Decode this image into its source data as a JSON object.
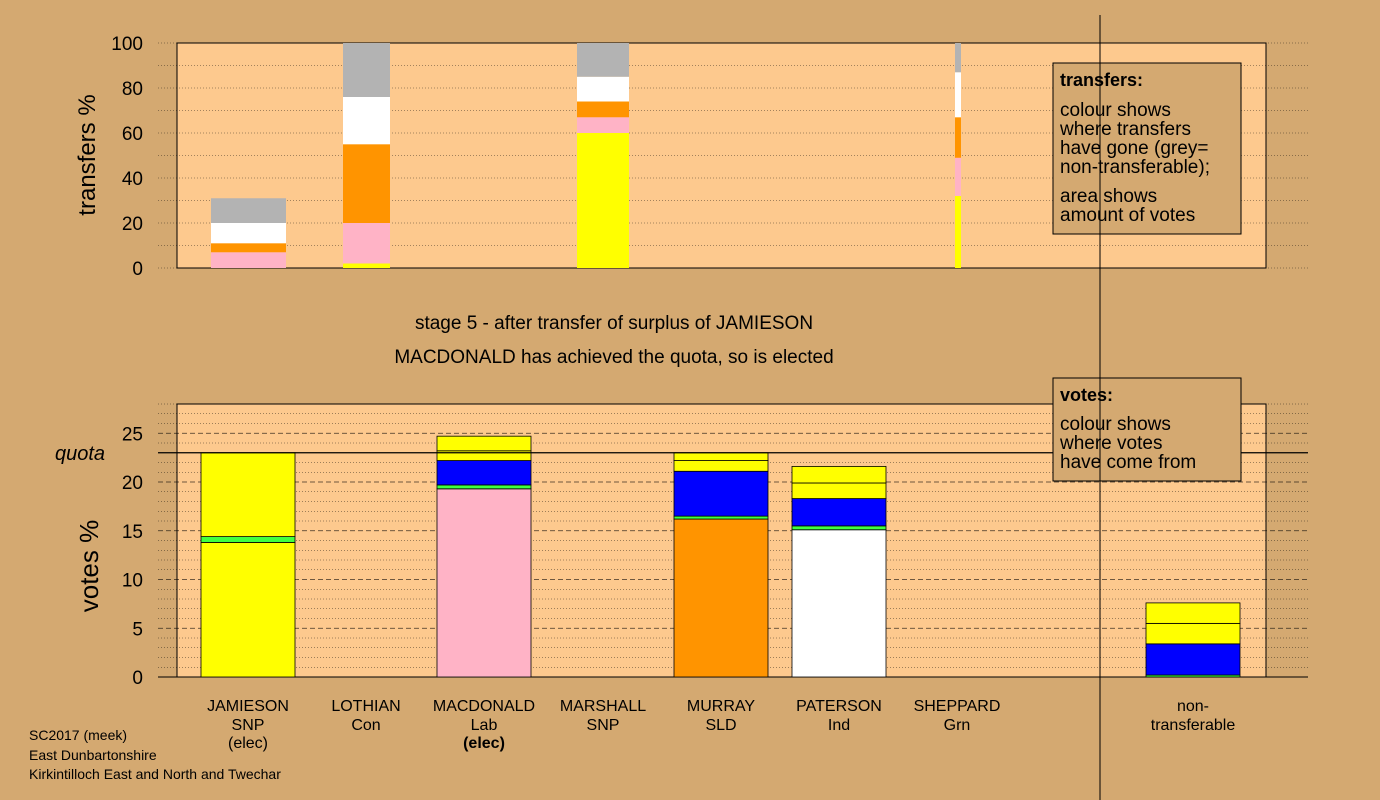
{
  "colors": {
    "background": "#d4a971",
    "plot_bg": "#fdc98e",
    "yellow": "#ffff00",
    "pink": "#ffb3c6",
    "orange": "#ff9400",
    "white": "#ffffff",
    "grey": "#b3b3b3",
    "blue": "#0000ff",
    "green": "#40ff40"
  },
  "header": {
    "stage_text": "stage 5 - after transfer of surplus of JAMIESON",
    "elected_text": "MACDONALD has achieved the quota, so is elected"
  },
  "footer": {
    "line1": "SC2017 (meek)",
    "line2": "East Dunbartonshire",
    "line3": "Kirkintilloch East and North and Twechar"
  },
  "legend_transfers": {
    "title": "transfers:",
    "lines": [
      "colour shows",
      "where transfers",
      "have gone (grey=",
      "non-transferable);"
    ],
    "lines2": [
      "area shows",
      "amount of votes"
    ]
  },
  "legend_votes": {
    "title": "votes:",
    "lines": [
      "colour shows",
      "where votes",
      "have come from"
    ]
  },
  "chart_data": [
    {
      "type": "bar",
      "name": "transfers",
      "ylabel": "transfers %",
      "ylim": [
        0,
        100
      ],
      "yticks": [
        0,
        20,
        40,
        60,
        80,
        100
      ],
      "grid": true,
      "columns": [
        {
          "segments": [
            {
              "color": "pink",
              "from": 0,
              "to": 7
            },
            {
              "color": "orange",
              "from": 7,
              "to": 11
            },
            {
              "color": "white",
              "from": 11,
              "to": 20
            },
            {
              "color": "grey",
              "from": 20,
              "to": 31
            }
          ]
        },
        {
          "segments": [
            {
              "color": "yellow",
              "from": 0,
              "to": 2
            },
            {
              "color": "pink",
              "from": 2,
              "to": 20
            },
            {
              "color": "orange",
              "from": 20,
              "to": 55
            },
            {
              "color": "white",
              "from": 55,
              "to": 76
            },
            {
              "color": "grey",
              "from": 76,
              "to": 100
            }
          ]
        },
        {
          "segments": [
            {
              "color": "yellow",
              "from": 0,
              "to": 60
            },
            {
              "color": "pink",
              "from": 60,
              "to": 67
            },
            {
              "color": "orange",
              "from": 67,
              "to": 74
            },
            {
              "color": "white",
              "from": 74,
              "to": 85
            },
            {
              "color": "grey",
              "from": 85,
              "to": 100
            }
          ]
        },
        {
          "segments": [
            {
              "color": "yellow",
              "from": 0,
              "to": 32
            },
            {
              "color": "pink",
              "from": 32,
              "to": 49
            },
            {
              "color": "orange",
              "from": 49,
              "to": 67
            },
            {
              "color": "white",
              "from": 67,
              "to": 87
            },
            {
              "color": "grey",
              "from": 87,
              "to": 100
            }
          ]
        }
      ]
    },
    {
      "type": "bar",
      "name": "votes",
      "ylabel": "votes %",
      "ylim": [
        0,
        28
      ],
      "yticks": [
        0,
        5,
        10,
        15,
        20,
        25
      ],
      "quota": 23.0,
      "quota_label": "quota",
      "grid": true,
      "candidates": [
        {
          "name": "JAMIESON",
          "party": "SNP",
          "status": "(elec)",
          "status_bold": false,
          "segments": [
            {
              "color": "yellow",
              "from": 0,
              "to": 13.8
            },
            {
              "color": "green",
              "from": 13.8,
              "to": 14.4
            },
            {
              "color": "yellow",
              "from": 14.4,
              "to": 23.0
            }
          ]
        },
        {
          "name": "LOTHIAN",
          "party": "Con",
          "segments": []
        },
        {
          "name": "MACDONALD",
          "party": "Lab",
          "status": "(elec)",
          "status_bold": true,
          "segments": [
            {
              "color": "pink",
              "from": 0,
              "to": 19.3
            },
            {
              "color": "green",
              "from": 19.3,
              "to": 19.7
            },
            {
              "color": "blue",
              "from": 19.7,
              "to": 22.2
            },
            {
              "color": "yellow",
              "from": 22.2,
              "to": 23.2
            },
            {
              "color": "yellow",
              "from": 23.2,
              "to": 24.7
            }
          ]
        },
        {
          "name": "MARSHALL",
          "party": "SNP",
          "segments": []
        },
        {
          "name": "MURRAY",
          "party": "SLD",
          "segments": [
            {
              "color": "orange",
              "from": 0,
              "to": 16.2
            },
            {
              "color": "green",
              "from": 16.2,
              "to": 16.5
            },
            {
              "color": "blue",
              "from": 16.5,
              "to": 21.1
            },
            {
              "color": "yellow",
              "from": 21.1,
              "to": 22.2
            },
            {
              "color": "yellow",
              "from": 22.2,
              "to": 23.0
            }
          ]
        },
        {
          "name": "PATERSON",
          "party": "Ind",
          "segments": [
            {
              "color": "white",
              "from": 0,
              "to": 15.1
            },
            {
              "color": "green",
              "from": 15.1,
              "to": 15.5
            },
            {
              "color": "blue",
              "from": 15.5,
              "to": 18.3
            },
            {
              "color": "yellow",
              "from": 18.3,
              "to": 19.9
            },
            {
              "color": "yellow",
              "from": 19.9,
              "to": 21.6
            }
          ]
        },
        {
          "name": "SHEPPARD",
          "party": "Grn",
          "segments": []
        },
        {
          "name": "non-",
          "party": "transferable",
          "segments": [
            {
              "color": "green",
              "from": 0,
              "to": 0.2
            },
            {
              "color": "blue",
              "from": 0.2,
              "to": 3.4
            },
            {
              "color": "yellow",
              "from": 3.4,
              "to": 5.5
            },
            {
              "color": "yellow",
              "from": 5.5,
              "to": 7.6
            }
          ]
        }
      ]
    }
  ]
}
